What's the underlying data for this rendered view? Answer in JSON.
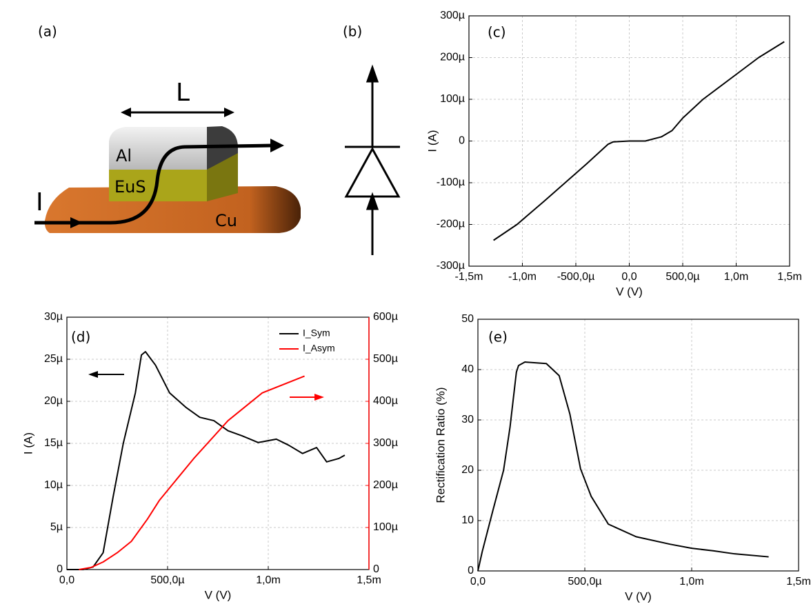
{
  "diagram": {
    "label_a": "(a)",
    "label_b": "(b)",
    "length": "L",
    "layer_al": "Al",
    "layer_eus": "EuS",
    "current": "I",
    "layer_cu": "Cu"
  },
  "chart_data": [
    {
      "type": "line",
      "panel_label": "(c)",
      "xlabel": "V (V)",
      "ylabel": "I (A)",
      "grid": true,
      "color": "#000000",
      "xlim": [
        -0.0015,
        0.0015
      ],
      "ylim": [
        -0.0003,
        0.0003
      ],
      "xticks": [
        {
          "value": -0.0015,
          "label": "-1,5m"
        },
        {
          "value": -0.001,
          "label": "-1,0m"
        },
        {
          "value": -0.0005,
          "label": "-500,0µ"
        },
        {
          "value": 0,
          "label": "0,0"
        },
        {
          "value": 0.0005,
          "label": "500,0µ"
        },
        {
          "value": 0.001,
          "label": "1,0m"
        },
        {
          "value": 0.0015,
          "label": "1,5m"
        }
      ],
      "yticks": [
        {
          "value": -0.0003,
          "label": "-300µ"
        },
        {
          "value": -0.0002,
          "label": "-200µ"
        },
        {
          "value": -0.0001,
          "label": "-100µ"
        },
        0,
        {
          "value": 0.0001,
          "label": "100µ"
        },
        {
          "value": 0.0002,
          "label": "200µ"
        },
        {
          "value": 0.0003,
          "label": "300µ"
        }
      ],
      "x": [
        -0.00127,
        -0.00105,
        -0.0008,
        -0.0006,
        -0.0004,
        -0.0002,
        -0.00015,
        0,
        0.00015,
        0.0003,
        0.0004,
        0.0005,
        0.00069,
        0.00095,
        0.00121,
        0.00145
      ],
      "values": [
        -0.000238,
        -0.0002,
        -0.000145,
        -0.0001,
        -5.5e-05,
        -8e-06,
        -2e-06,
        0,
        0,
        1e-05,
        2.5e-05,
        5.5e-05,
        0.0001,
        0.00015,
        0.0002,
        0.000238
      ]
    },
    {
      "type": "line",
      "panel_label": "(d)",
      "xlabel": "V (V)",
      "ylabel": "I (A)",
      "grid": true,
      "legend": "upper right",
      "y2color": "#ff0000",
      "xlim": [
        0,
        0.0015
      ],
      "ylim": [
        0,
        3e-05
      ],
      "y2lim": [
        0,
        0.0006
      ],
      "xticks": [
        {
          "value": 0,
          "label": "0,0"
        },
        {
          "value": 0.0005,
          "label": "500,0µ"
        },
        {
          "value": 0.001,
          "label": "1,0m"
        },
        {
          "value": 0.0015,
          "label": "1,5m"
        }
      ],
      "yticks": [
        0,
        {
          "value": 5e-06,
          "label": "5µ"
        },
        {
          "value": 1e-05,
          "label": "10µ"
        },
        {
          "value": 1.5e-05,
          "label": "15µ"
        },
        {
          "value": 2e-05,
          "label": "20µ"
        },
        {
          "value": 2.5e-05,
          "label": "25µ"
        },
        {
          "value": 3e-05,
          "label": "30µ"
        }
      ],
      "y2ticks": [
        0,
        {
          "value": 0.0001,
          "label": "100µ"
        },
        {
          "value": 0.0002,
          "label": "200µ"
        },
        {
          "value": 0.0003,
          "label": "300µ"
        },
        {
          "value": 0.0004,
          "label": "400µ"
        },
        {
          "value": 0.0005,
          "label": "500µ"
        },
        {
          "value": 0.0006,
          "label": "600µ"
        }
      ],
      "series": [
        {
          "name": "I_Sym",
          "color": "#000000",
          "x": [
            0,
            8e-05,
            0.00013,
            0.00018,
            0.00023,
            0.00028,
            0.00034,
            0.00037,
            0.00039,
            0.00044,
            0.00051,
            0.00059,
            0.00066,
            0.00073,
            0.0008,
            0.00087,
            0.00095,
            0.00104,
            0.0011,
            0.00117,
            0.00124,
            0.00129,
            0.00135,
            0.00138
          ],
          "values": [
            0,
            0,
            3e-07,
            2e-06,
            8.7e-06,
            1.5e-05,
            2.1e-05,
            2.55e-05,
            2.59e-05,
            2.43e-05,
            2.1e-05,
            1.93e-05,
            1.81e-05,
            1.77e-05,
            1.65e-05,
            1.59e-05,
            1.51e-05,
            1.55e-05,
            1.48e-05,
            1.38e-05,
            1.45e-05,
            1.28e-05,
            1.32e-05,
            1.36e-05
          ]
        },
        {
          "name": "I_Asym",
          "color": "#ff0000",
          "axis": "y2",
          "x": [
            6e-05,
            0.00012,
            0.00018,
            0.00025,
            0.00032,
            0.0004,
            0.00046,
            0.00063,
            0.0008,
            0.00097,
            0.00118
          ],
          "values": [
            0,
            5e-06,
            1.8e-05,
            4e-05,
            6.7e-05,
            0.00012,
            0.000165,
            0.000264,
            0.000354,
            0.00042,
            0.00046
          ]
        }
      ]
    },
    {
      "type": "line",
      "panel_label": "(e)",
      "xlabel": "V (V)",
      "ylabel": "Rectification Ratio (%)",
      "grid": true,
      "color": "#000000",
      "xlim": [
        0,
        0.0015
      ],
      "ylim": [
        0,
        50
      ],
      "xticks": [
        {
          "value": 0,
          "label": "0,0"
        },
        {
          "value": 0.0005,
          "label": "500,0µ"
        },
        {
          "value": 0.001,
          "label": "1,0m"
        },
        {
          "value": 0.0015,
          "label": "1,5m"
        }
      ],
      "yticks": [
        0,
        10,
        20,
        30,
        40,
        50
      ],
      "x": [
        0,
        2e-05,
        7e-05,
        0.00012,
        0.00015,
        0.00018,
        0.00019,
        0.00022,
        0.00032,
        0.00038,
        0.00043,
        0.00048,
        0.00053,
        0.00061,
        0.00074,
        0.0009,
        0.001,
        0.0011,
        0.0012,
        0.00136
      ],
      "values": [
        0,
        3.8,
        12,
        20,
        28.5,
        39.5,
        40.8,
        41.5,
        41.2,
        38.8,
        31.2,
        20.3,
        14.8,
        9.3,
        6.8,
        5.3,
        4.5,
        4,
        3.4,
        2.8
      ]
    }
  ]
}
